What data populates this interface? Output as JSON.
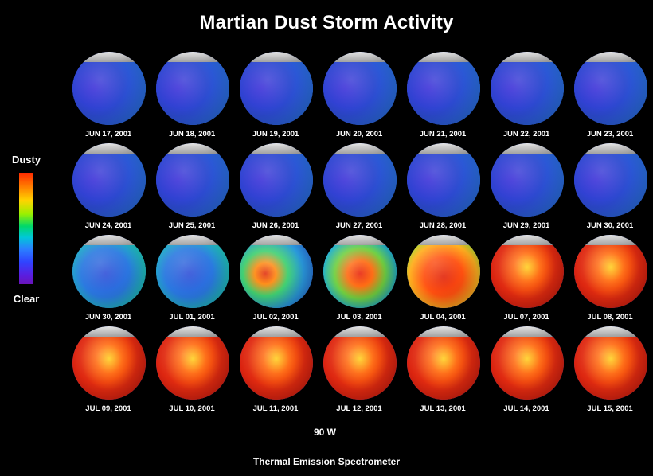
{
  "title": "Martian Dust Storm Activity",
  "legend": {
    "top_label": "Dusty",
    "bottom_label": "Clear",
    "scale_colors": [
      "#ff2a00",
      "#ff7a00",
      "#ffd400",
      "#9af000",
      "#00d86a",
      "#00c8d8",
      "#2a82ff",
      "#3044ff",
      "#5a1ee0",
      "#6a14b8"
    ]
  },
  "longitude_label": "90 W",
  "footer": "Thermal Emission Spectrometer",
  "globes": [
    {
      "date": "JUN 17, 2001",
      "dust": 0.05
    },
    {
      "date": "JUN 18, 2001",
      "dust": 0.06
    },
    {
      "date": "JUN 19, 2001",
      "dust": 0.07
    },
    {
      "date": "JUN 20, 2001",
      "dust": 0.06
    },
    {
      "date": "JUN 21, 2001",
      "dust": 0.05
    },
    {
      "date": "JUN 22, 2001",
      "dust": 0.05
    },
    {
      "date": "JUN 23, 2001",
      "dust": 0.06
    },
    {
      "date": "JUN 24, 2001",
      "dust": 0.05
    },
    {
      "date": "JUN 25, 2001",
      "dust": 0.05
    },
    {
      "date": "JUN 26, 2001",
      "dust": 0.05
    },
    {
      "date": "JUN 27, 2001",
      "dust": 0.05
    },
    {
      "date": "JUN 28, 2001",
      "dust": 0.05
    },
    {
      "date": "JUN 29, 2001",
      "dust": 0.06
    },
    {
      "date": "JUN 30, 2001",
      "dust": 0.07
    },
    {
      "date": "JUN 30, 2001",
      "dust": 0.15
    },
    {
      "date": "JUL 01, 2001",
      "dust": 0.25
    },
    {
      "date": "JUL 02, 2001",
      "dust": 0.4
    },
    {
      "date": "JUL 03, 2001",
      "dust": 0.55
    },
    {
      "date": "JUL 04, 2001",
      "dust": 0.75
    },
    {
      "date": "JUL 07, 2001",
      "dust": 0.9
    },
    {
      "date": "JUL 08, 2001",
      "dust": 0.92
    },
    {
      "date": "JUL 09, 2001",
      "dust": 0.9
    },
    {
      "date": "JUL 10, 2001",
      "dust": 0.9
    },
    {
      "date": "JUL 11, 2001",
      "dust": 0.92
    },
    {
      "date": "JUL 12, 2001",
      "dust": 0.93
    },
    {
      "date": "JUL 13, 2001",
      "dust": 0.93
    },
    {
      "date": "JUL 14, 2001",
      "dust": 0.93
    },
    {
      "date": "JUL 15, 2001",
      "dust": 0.95
    }
  ]
}
